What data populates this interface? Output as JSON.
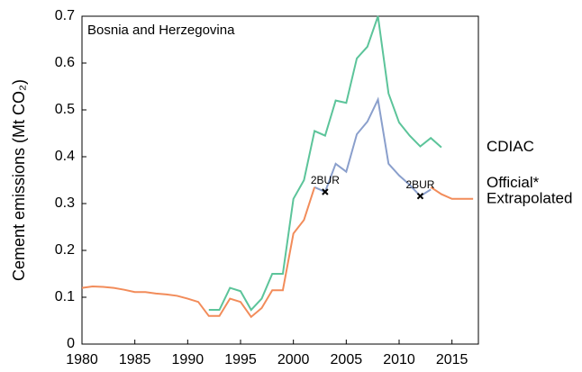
{
  "chart_data": {
    "type": "line",
    "title": "Bosnia and Herzegovina",
    "y_label": "Cement emissions (Mt CO₂)",
    "x": [
      1980,
      1981,
      1982,
      1983,
      1984,
      1985,
      1986,
      1987,
      1988,
      1989,
      1990,
      1991,
      1992,
      1993,
      1994,
      1995,
      1996,
      1997,
      1998,
      1999,
      2000,
      2001,
      2002,
      2003,
      2004,
      2005,
      2006,
      2007,
      2008,
      2009,
      2010,
      2011,
      2012,
      2013,
      2014,
      2015,
      2016,
      2017
    ],
    "series": [
      {
        "name": "CDIAC",
        "color": "#5cc49a",
        "values": [
          null,
          null,
          null,
          null,
          null,
          null,
          null,
          null,
          null,
          null,
          null,
          null,
          0.073,
          0.073,
          0.12,
          0.113,
          0.073,
          0.097,
          0.15,
          0.15,
          0.31,
          0.35,
          0.455,
          0.445,
          0.52,
          0.515,
          0.61,
          0.635,
          0.7,
          0.535,
          0.473,
          0.445,
          0.422,
          0.44,
          0.42,
          null,
          null,
          null
        ]
      },
      {
        "name": "Official*",
        "color": "#8a9fcc",
        "values": [
          null,
          null,
          null,
          null,
          null,
          null,
          null,
          null,
          null,
          null,
          null,
          null,
          null,
          null,
          null,
          null,
          null,
          null,
          null,
          null,
          null,
          null,
          0.335,
          0.325,
          0.385,
          0.368,
          0.448,
          0.475,
          0.522,
          0.385,
          0.36,
          0.34,
          0.316,
          0.33,
          null,
          null,
          null,
          null
        ]
      },
      {
        "name": "Extrapolated",
        "color": "#f28c5a",
        "values": [
          0.12,
          0.123,
          0.122,
          0.12,
          0.116,
          0.111,
          0.111,
          0.108,
          0.106,
          0.103,
          0.097,
          0.09,
          0.06,
          0.06,
          0.097,
          0.09,
          0.058,
          0.077,
          0.115,
          0.115,
          0.236,
          0.265,
          0.335,
          null,
          null,
          null,
          null,
          null,
          null,
          null,
          null,
          null,
          null,
          0.335,
          0.32,
          0.31,
          0.31,
          0.31
        ]
      }
    ],
    "annotations": [
      {
        "text": "2BUR",
        "x": 2003,
        "y": 0.325
      },
      {
        "text": "2BUR",
        "x": 2012,
        "y": 0.316
      }
    ],
    "xlim": [
      1980,
      2017.5
    ],
    "ylim": [
      0,
      0.7
    ],
    "xticks": [
      1980,
      1985,
      1990,
      1995,
      2000,
      2005,
      2010,
      2015
    ],
    "yticks": [
      0,
      0.1,
      0.2,
      0.3,
      0.4,
      0.5,
      0.6,
      0.7
    ]
  }
}
